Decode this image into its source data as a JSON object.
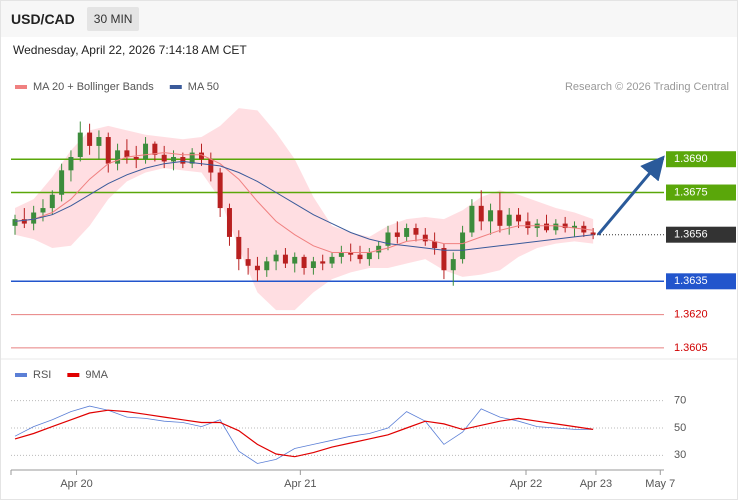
{
  "header": {
    "symbol": "USD/CAD",
    "timeframe": "30 MIN",
    "timestamp": "Wednesday, April 22, 2026 7:14:18 AM CET",
    "credit": "Research © 2026 Trading Central"
  },
  "chart_data": [
    {
      "type": "candlestick",
      "xlim": [
        0,
        69.6
      ],
      "ylim": [
        1.36,
        1.3732
      ],
      "up_color": "#3c8c3c",
      "down_color": "#b82020",
      "candles": [
        [
          1.366,
          1.3665,
          1.3656,
          1.3663
        ],
        [
          1.3663,
          1.3668,
          1.3659,
          1.3661
        ],
        [
          1.3661,
          1.3669,
          1.3658,
          1.3666
        ],
        [
          1.3666,
          1.3672,
          1.3662,
          1.3668
        ],
        [
          1.3668,
          1.3676,
          1.3665,
          1.3674
        ],
        [
          1.3674,
          1.3688,
          1.3671,
          1.3685
        ],
        [
          1.3685,
          1.3694,
          1.368,
          1.3691
        ],
        [
          1.3691,
          1.3707,
          1.3689,
          1.3702
        ],
        [
          1.3702,
          1.3706,
          1.3692,
          1.3696
        ],
        [
          1.3696,
          1.3703,
          1.369,
          1.37
        ],
        [
          1.37,
          1.3702,
          1.3684,
          1.3688
        ],
        [
          1.3688,
          1.3697,
          1.3685,
          1.3694
        ],
        [
          1.3694,
          1.3699,
          1.3688,
          1.3691
        ],
        [
          1.3691,
          1.3696,
          1.3686,
          1.369
        ],
        [
          1.369,
          1.37,
          1.3688,
          1.3697
        ],
        [
          1.3697,
          1.3698,
          1.3689,
          1.3692
        ],
        [
          1.3692,
          1.3696,
          1.3686,
          1.3689
        ],
        [
          1.3689,
          1.3694,
          1.3685,
          1.3691
        ],
        [
          1.3691,
          1.3693,
          1.3686,
          1.3688
        ],
        [
          1.3688,
          1.3695,
          1.3686,
          1.3693
        ],
        [
          1.3693,
          1.3697,
          1.3687,
          1.369
        ],
        [
          1.369,
          1.3693,
          1.368,
          1.3684
        ],
        [
          1.3684,
          1.3686,
          1.3664,
          1.3668
        ],
        [
          1.3668,
          1.367,
          1.3651,
          1.3655
        ],
        [
          1.3655,
          1.3658,
          1.364,
          1.3645
        ],
        [
          1.3645,
          1.365,
          1.3638,
          1.3642
        ],
        [
          1.3642,
          1.3646,
          1.3635,
          1.364
        ],
        [
          1.364,
          1.3646,
          1.3637,
          1.3644
        ],
        [
          1.3644,
          1.3649,
          1.364,
          1.3647
        ],
        [
          1.3647,
          1.365,
          1.3641,
          1.3643
        ],
        [
          1.3643,
          1.3648,
          1.3639,
          1.3646
        ],
        [
          1.3646,
          1.3647,
          1.3638,
          1.3641
        ],
        [
          1.3641,
          1.3646,
          1.3638,
          1.3644
        ],
        [
          1.3644,
          1.3647,
          1.364,
          1.3643
        ],
        [
          1.3643,
          1.3648,
          1.3641,
          1.3646
        ],
        [
          1.3646,
          1.3651,
          1.3643,
          1.3648
        ],
        [
          1.3648,
          1.3652,
          1.3644,
          1.3647
        ],
        [
          1.3647,
          1.3651,
          1.3643,
          1.3645
        ],
        [
          1.3645,
          1.365,
          1.3642,
          1.3648
        ],
        [
          1.3648,
          1.3653,
          1.3645,
          1.3651
        ],
        [
          1.3651,
          1.366,
          1.3649,
          1.3657
        ],
        [
          1.3657,
          1.3662,
          1.3652,
          1.3655
        ],
        [
          1.3655,
          1.3661,
          1.3653,
          1.3659
        ],
        [
          1.3659,
          1.3661,
          1.3653,
          1.3656
        ],
        [
          1.3656,
          1.3659,
          1.3651,
          1.3653
        ],
        [
          1.3653,
          1.3657,
          1.3647,
          1.365
        ],
        [
          1.365,
          1.3652,
          1.3636,
          1.364
        ],
        [
          1.364,
          1.3648,
          1.3633,
          1.3645
        ],
        [
          1.3645,
          1.366,
          1.3643,
          1.3657
        ],
        [
          1.3657,
          1.3672,
          1.3655,
          1.3669
        ],
        [
          1.3669,
          1.3676,
          1.3658,
          1.3662
        ],
        [
          1.3662,
          1.367,
          1.3656,
          1.3667
        ],
        [
          1.3667,
          1.3675,
          1.3657,
          1.366
        ],
        [
          1.366,
          1.3668,
          1.3656,
          1.3665
        ],
        [
          1.3665,
          1.3668,
          1.3659,
          1.3662
        ],
        [
          1.3662,
          1.3666,
          1.3656,
          1.3659
        ],
        [
          1.3659,
          1.3663,
          1.3655,
          1.3661
        ],
        [
          1.3661,
          1.3665,
          1.3657,
          1.3658
        ],
        [
          1.3658,
          1.3663,
          1.3656,
          1.3661
        ],
        [
          1.3661,
          1.3664,
          1.3657,
          1.3659
        ],
        [
          1.3659,
          1.3662,
          1.3655,
          1.366
        ],
        [
          1.366,
          1.3662,
          1.3655,
          1.3657
        ],
        [
          1.3657,
          1.3659,
          1.3654,
          1.3656
        ]
      ],
      "overlay_x": [
        0,
        2,
        4,
        6,
        8,
        10,
        12,
        14,
        16,
        18,
        20,
        22,
        24,
        26,
        28,
        30,
        32,
        34,
        36,
        38,
        40,
        42,
        44,
        46,
        48,
        50,
        52,
        54,
        56,
        58,
        60,
        62
      ],
      "band_color": "#ffc8cf",
      "bands": {
        "upper": [
          1.3668,
          1.3672,
          1.3682,
          1.3694,
          1.3703,
          1.3705,
          1.3703,
          1.3701,
          1.37,
          1.3699,
          1.37,
          1.3705,
          1.3713,
          1.3712,
          1.3702,
          1.369,
          1.3673,
          1.366,
          1.3657,
          1.3655,
          1.366,
          1.3663,
          1.3664,
          1.3663,
          1.3667,
          1.3673,
          1.3676,
          1.3674,
          1.3671,
          1.3668,
          1.3666,
          1.3663
        ],
        "lower": [
          1.3656,
          1.3654,
          1.365,
          1.3651,
          1.366,
          1.3672,
          1.368,
          1.3684,
          1.3686,
          1.3685,
          1.3684,
          1.3672,
          1.365,
          1.363,
          1.3622,
          1.3622,
          1.363,
          1.3636,
          1.3639,
          1.3641,
          1.3641,
          1.3643,
          1.3645,
          1.364,
          1.3637,
          1.3638,
          1.364,
          1.3646,
          1.365,
          1.3652,
          1.3653,
          1.3652
        ]
      },
      "series": [
        {
          "name": "MA 20 + Bollinger Bands",
          "color": "#f08080",
          "values": [
            1.3662,
            1.3663,
            1.3666,
            1.3672,
            1.3681,
            1.3688,
            1.3691,
            1.3692,
            1.3693,
            1.3692,
            1.3692,
            1.3688,
            1.3681,
            1.3671,
            1.3662,
            1.3656,
            1.3651,
            1.3648,
            1.3648,
            1.3648,
            1.365,
            1.3653,
            1.3654,
            1.3652,
            1.3652,
            1.3655,
            1.3658,
            1.366,
            1.366,
            1.366,
            1.3659,
            1.3658
          ]
        },
        {
          "name": "MA 50",
          "color": "#3a5a9a",
          "values": [
            1.3662,
            1.3663,
            1.3665,
            1.3669,
            1.3674,
            1.3679,
            1.3683,
            1.3686,
            1.3688,
            1.3689,
            1.3688,
            1.3687,
            1.3684,
            1.368,
            1.3675,
            1.367,
            1.3665,
            1.3661,
            1.3657,
            1.3654,
            1.3652,
            1.3651,
            1.365,
            1.3649,
            1.3649,
            1.365,
            1.3651,
            1.3652,
            1.3653,
            1.3654,
            1.3655,
            1.3656
          ]
        }
      ],
      "levels": [
        {
          "value": 1.369,
          "label": "1.3690"
        },
        1.3675,
        1.3656,
        1.3635,
        {
          "value": 1.362,
          "label": "1.3620"
        },
        1.3605
      ],
      "level_colors": [
        "#5aa70a",
        "#5aa70a",
        "#333333",
        "#2255cc",
        "#e06060",
        "#e06060"
      ],
      "level_boxed": [
        true,
        true,
        true,
        true,
        false,
        false
      ],
      "level_dotted": [
        false,
        false,
        true,
        false,
        false,
        false
      ],
      "arrow_color": "#2a5a9a"
    },
    {
      "type": "line",
      "xlim": [
        0,
        69.6
      ],
      "ylim": [
        20,
        80
      ],
      "yticks": [
        30,
        50,
        70
      ],
      "grid": true,
      "x": [
        0,
        2,
        4,
        6,
        8,
        10,
        12,
        14,
        16,
        18,
        20,
        22,
        24,
        26,
        28,
        30,
        32,
        34,
        36,
        38,
        40,
        42,
        44,
        46,
        48,
        50,
        52,
        54,
        56,
        58,
        60,
        62
      ],
      "series": [
        {
          "name": "RSI",
          "color": "#5b7fd6",
          "values": [
            44,
            51,
            56,
            62,
            66,
            63,
            58,
            57,
            55,
            54,
            51,
            56,
            33,
            24,
            27,
            35,
            38,
            41,
            44,
            46,
            50,
            62,
            55,
            38,
            47,
            64,
            58,
            55,
            51,
            50,
            49,
            49
          ]
        },
        {
          "name": "9MA",
          "color": "#e00000",
          "values": [
            42,
            46,
            51,
            56,
            61,
            63,
            62,
            60,
            58,
            56,
            54,
            54,
            48,
            38,
            31,
            29,
            32,
            36,
            39,
            42,
            45,
            50,
            55,
            53,
            49,
            52,
            55,
            57,
            55,
            53,
            51,
            49
          ]
        }
      ],
      "xticks": [
        {
          "value": 6.6,
          "label": "Apr 20"
        },
        {
          "value": 30.6,
          "label": "Apr 21"
        },
        {
          "value": 54.8,
          "label": "Apr 22"
        },
        {
          "value": 62.3,
          "label": "Apr 23"
        },
        {
          "value": 69.2,
          "label": "May 7"
        }
      ]
    }
  ]
}
